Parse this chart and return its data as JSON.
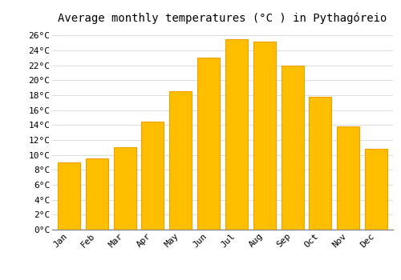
{
  "title": "Average monthly temperatures (°C ) in Pythagóreio",
  "months": [
    "Jan",
    "Feb",
    "Mar",
    "Apr",
    "May",
    "Jun",
    "Jul",
    "Aug",
    "Sep",
    "Oct",
    "Nov",
    "Dec"
  ],
  "values": [
    9.0,
    9.5,
    11.0,
    14.5,
    18.5,
    23.0,
    25.5,
    25.2,
    22.0,
    17.8,
    13.8,
    10.8
  ],
  "bar_color": "#FFBE00",
  "bar_edge_color": "#F0A000",
  "ylim": [
    0,
    27
  ],
  "yticks": [
    0,
    2,
    4,
    6,
    8,
    10,
    12,
    14,
    16,
    18,
    20,
    22,
    24,
    26
  ],
  "background_color": "#FFFFFF",
  "grid_color": "#DDDDDD",
  "title_fontsize": 10,
  "tick_fontsize": 8
}
